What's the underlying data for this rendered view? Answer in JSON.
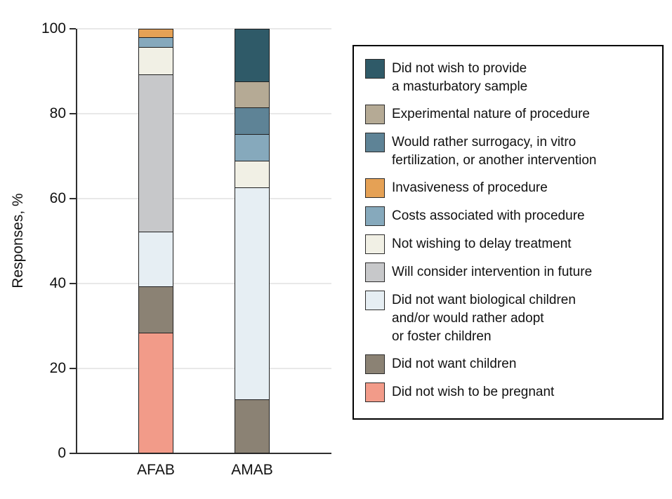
{
  "figure": {
    "title": "",
    "y_axis_label": "Responses, %"
  },
  "chart_data": {
    "type": "bar",
    "subtype": "stacked-vertical-100pct",
    "title": "",
    "xlabel": "",
    "ylabel": "Responses, %",
    "ylim": [
      0,
      100
    ],
    "yticks": [
      0,
      20,
      40,
      60,
      80,
      100
    ],
    "grid": "horizontal light-gray lines at each y tick",
    "legend_position": "right, boxed",
    "categories": [
      "AFAB",
      "AMAB"
    ],
    "series": [
      {
        "name": "Did not wish to provide a masturbatory sample",
        "legend_lines": [
          "Did not wish to provide",
          "a masturbatory sample"
        ],
        "color": "#2F5A68",
        "values": [
          0,
          12.5
        ]
      },
      {
        "name": "Experimental nature of procedure",
        "legend_lines": [
          "Experimental nature of procedure"
        ],
        "color": "#B5AA95",
        "values": [
          0,
          6.25
        ]
      },
      {
        "name": "Would rather surrogacy, in vitro fertilization, or another intervention",
        "legend_lines": [
          "Would rather surrogacy, in vitro",
          "fertilization, or another intervention"
        ],
        "color": "#5E8396",
        "values": [
          0,
          6.25
        ]
      },
      {
        "name": "Invasiveness of procedure",
        "legend_lines": [
          "Invasiveness of procedure"
        ],
        "color": "#E5A155",
        "values": [
          2.2,
          0
        ]
      },
      {
        "name": "Costs associated with procedure",
        "legend_lines": [
          "Costs associated with procedure"
        ],
        "color": "#86A9BC",
        "values": [
          2.2,
          6.25
        ]
      },
      {
        "name": "Not wishing to delay treatment",
        "legend_lines": [
          "Not wishing to delay treatment"
        ],
        "color": "#F1F0E5",
        "values": [
          6.5,
          6.25
        ]
      },
      {
        "name": "Will consider intervention in future",
        "legend_lines": [
          "Will consider intervention in future"
        ],
        "color": "#C7C8CA",
        "values": [
          37.0,
          0
        ]
      },
      {
        "name": "Did not want biological children and/or would rather adopt or foster children",
        "legend_lines": [
          "Did not want biological children",
          "and/or would rather adopt",
          "or foster children"
        ],
        "color": "#E6EEF3",
        "values": [
          13.0,
          50.0
        ]
      },
      {
        "name": "Did not want children",
        "legend_lines": [
          "Did not want children"
        ],
        "color": "#8B8274",
        "values": [
          10.9,
          12.5
        ]
      },
      {
        "name": "Did not wish to be pregnant",
        "legend_lines": [
          "Did not wish to be pregnant"
        ],
        "color": "#F29B89",
        "values": [
          28.3,
          0
        ]
      }
    ]
  }
}
